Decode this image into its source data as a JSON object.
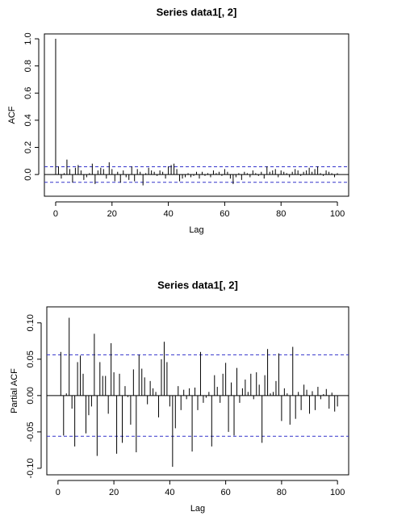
{
  "chart_data": [
    {
      "type": "acf",
      "title": "Series  data1[, 2]",
      "x_label": "Lag",
      "y_label": "ACF",
      "x": [
        0,
        1,
        2,
        3,
        4,
        5,
        6,
        7,
        8,
        9,
        10,
        11,
        12,
        13,
        14,
        15,
        16,
        17,
        18,
        19,
        20,
        21,
        22,
        23,
        24,
        25,
        26,
        27,
        28,
        29,
        30,
        31,
        32,
        33,
        34,
        35,
        36,
        37,
        38,
        39,
        40,
        41,
        42,
        43,
        44,
        45,
        46,
        47,
        48,
        49,
        50,
        51,
        52,
        53,
        54,
        55,
        56,
        57,
        58,
        59,
        60,
        61,
        62,
        63,
        64,
        65,
        66,
        67,
        68,
        69,
        70,
        71,
        72,
        73,
        74,
        75,
        76,
        77,
        78,
        79,
        80,
        81,
        82,
        83,
        84,
        85,
        86,
        87,
        88,
        89,
        90,
        91,
        92,
        93,
        94,
        95,
        96,
        97,
        98,
        99,
        100
      ],
      "values": [
        1.0,
        0.06,
        -0.03,
        0.01,
        0.11,
        0.04,
        -0.06,
        0.05,
        0.07,
        0.03,
        -0.04,
        -0.02,
        0.01,
        0.08,
        -0.07,
        0.03,
        0.05,
        0.04,
        -0.03,
        0.09,
        0.04,
        -0.05,
        0.02,
        -0.06,
        0.03,
        -0.02,
        -0.04,
        0.06,
        -0.05,
        0.04,
        0.02,
        -0.08,
        0.01,
        0.05,
        0.03,
        0.02,
        -0.01,
        0.03,
        0.02,
        -0.03,
        0.06,
        0.07,
        0.08,
        0.04,
        -0.05,
        -0.03,
        -0.02,
        0.01,
        -0.02,
        -0.01,
        0.02,
        -0.03,
        0.02,
        -0.01,
        0.01,
        -0.02,
        0.03,
        0.01,
        0.02,
        -0.01,
        0.04,
        0.02,
        -0.03,
        -0.07,
        -0.02,
        0.01,
        -0.04,
        0.02,
        0.01,
        -0.02,
        0.03,
        0.01,
        -0.01,
        0.02,
        -0.03,
        0.06,
        0.02,
        0.03,
        0.04,
        -0.02,
        0.03,
        0.02,
        0.01,
        -0.02,
        0.02,
        0.04,
        0.03,
        -0.01,
        0.02,
        0.03,
        0.05,
        0.02,
        0.04,
        0.06,
        0.01,
        -0.01,
        0.03,
        0.02,
        0.01,
        -0.02,
        0.01
      ],
      "ci": [
        -0.057,
        0.057
      ],
      "color": "#000000",
      "ci_color": "#3333cc",
      "xlim": [
        -4,
        104
      ],
      "ylim": [
        -0.16,
        1.036
      ],
      "xticks": [
        0,
        20,
        40,
        60,
        80,
        100
      ],
      "yticks": [
        {
          "value": 0,
          "label": "0.0"
        },
        0.2,
        0.4,
        0.6,
        0.8,
        {
          "value": 1,
          "label": "1.0"
        }
      ]
    },
    {
      "type": "acf",
      "title": "Series  data1[, 2]",
      "x_label": "Lag",
      "y_label": "Partial ACF",
      "x": [
        1,
        2,
        3,
        4,
        5,
        6,
        7,
        8,
        9,
        10,
        11,
        12,
        13,
        14,
        15,
        16,
        17,
        18,
        19,
        20,
        21,
        22,
        23,
        24,
        25,
        26,
        27,
        28,
        29,
        30,
        31,
        32,
        33,
        34,
        35,
        36,
        37,
        38,
        39,
        40,
        41,
        42,
        43,
        44,
        45,
        46,
        47,
        48,
        49,
        50,
        51,
        52,
        53,
        54,
        55,
        56,
        57,
        58,
        59,
        60,
        61,
        62,
        63,
        64,
        65,
        66,
        67,
        68,
        69,
        70,
        71,
        72,
        73,
        74,
        75,
        76,
        77,
        78,
        79,
        80,
        81,
        82,
        83,
        84,
        85,
        86,
        87,
        88,
        89,
        90,
        91,
        92,
        93,
        94,
        95,
        96,
        97,
        98,
        99,
        100
      ],
      "values": [
        0.06,
        -0.055,
        0.003,
        0.107,
        -0.018,
        -0.07,
        0.046,
        0.055,
        0.03,
        -0.052,
        -0.027,
        -0.015,
        0.085,
        -0.083,
        0.046,
        0.027,
        0.027,
        -0.025,
        0.072,
        0.032,
        -0.08,
        0.03,
        -0.065,
        0.013,
        -0.002,
        -0.04,
        0.036,
        -0.078,
        0.056,
        0.037,
        0.025,
        -0.012,
        0.02,
        0.01,
        0.005,
        -0.03,
        0.05,
        0.074,
        0.046,
        -0.015,
        -0.098,
        -0.045,
        0.013,
        -0.02,
        0.008,
        -0.005,
        0.01,
        -0.077,
        0.011,
        -0.02,
        0.06,
        -0.01,
        -0.003,
        0.005,
        -0.07,
        0.028,
        0.012,
        -0.01,
        0.03,
        0.045,
        -0.05,
        0.018,
        -0.055,
        0.038,
        -0.01,
        0.01,
        0.022,
        0.005,
        0.03,
        -0.005,
        0.032,
        0.015,
        -0.065,
        0.028,
        0.064,
        0.003,
        0.005,
        0.02,
        0.058,
        -0.035,
        0.01,
        0.003,
        -0.04,
        0.067,
        -0.032,
        0.005,
        -0.02,
        0.015,
        0.008,
        -0.025,
        0.006,
        -0.02,
        0.012,
        -0.005,
        0.002,
        0.009,
        -0.018,
        0.004,
        -0.022,
        -0.015
      ],
      "ci": [
        -0.056,
        0.056
      ],
      "color": "#000000",
      "ci_color": "#3333cc",
      "xlim": [
        -4,
        104
      ],
      "ylim": [
        -0.109,
        0.122
      ],
      "xticks": [
        0,
        20,
        40,
        60,
        80,
        100
      ],
      "yticks": [
        {
          "value": -0.1,
          "label": "-0.10"
        },
        -0.05,
        {
          "value": 0,
          "label": "0.00"
        },
        0.05,
        {
          "value": 0.1,
          "label": "0.10"
        }
      ]
    }
  ]
}
